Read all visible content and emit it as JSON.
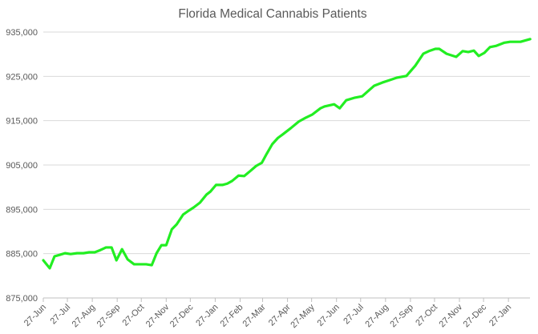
{
  "chart_data": {
    "type": "line",
    "title": "Florida Medical Cannabis Patients",
    "xlabel": "",
    "ylabel": "",
    "ylim": [
      875000,
      935000
    ],
    "yticks": [
      "875,000",
      "885,000",
      "895,000",
      "905,000",
      "915,000",
      "925,000",
      "935,000"
    ],
    "ytick_values": [
      875000,
      885000,
      895000,
      905000,
      915000,
      925000,
      935000
    ],
    "xtick_labels": [
      "27-Jun",
      "27-Jul",
      "27-Aug",
      "27-Sep",
      "27-Oct",
      "27-Nov",
      "27-Dec",
      "27-Jan",
      "27-Feb",
      "27-Mar",
      "27-Apr",
      "27-May",
      "27-Jun",
      "27-Jul",
      "27-Aug",
      "27-Sep",
      "27-Oct",
      "27-Nov",
      "27-Dec",
      "27-Jan"
    ],
    "xtick_dates": [
      "2022-06-27",
      "2022-07-27",
      "2022-08-27",
      "2022-09-27",
      "2022-10-27",
      "2022-11-27",
      "2022-12-27",
      "2023-01-27",
      "2023-02-27",
      "2023-03-27",
      "2023-04-27",
      "2023-05-27",
      "2023-06-27",
      "2023-07-27",
      "2023-08-27",
      "2023-09-27",
      "2023-10-27",
      "2023-11-27",
      "2023-12-27",
      "2024-01-27"
    ],
    "grid": true,
    "legend": "none",
    "line_color": "#22ee22",
    "series": [
      {
        "x": [
          "2022-06-27",
          "2022-07-05",
          "2022-07-11",
          "2022-07-17",
          "2022-07-24",
          "2022-07-31",
          "2022-08-08",
          "2022-08-16",
          "2022-08-23",
          "2022-08-30",
          "2022-09-06",
          "2022-09-13",
          "2022-09-20",
          "2022-09-26",
          "2022-10-03",
          "2022-10-10",
          "2022-10-18",
          "2022-10-26",
          "2022-11-02",
          "2022-11-09",
          "2022-11-15",
          "2022-11-21",
          "2022-11-27",
          "2022-12-04",
          "2022-12-10",
          "2022-12-18",
          "2022-12-25",
          "2022-12-31",
          "2023-01-08",
          "2023-01-16",
          "2023-01-21",
          "2023-01-28",
          "2023-02-05",
          "2023-02-11",
          "2023-02-17",
          "2023-02-25",
          "2023-03-04",
          "2023-03-12",
          "2023-03-19",
          "2023-03-26",
          "2023-04-01",
          "2023-04-08",
          "2023-04-15",
          "2023-04-21",
          "2023-05-01",
          "2023-05-11",
          "2023-05-20",
          "2023-05-28",
          "2023-06-07",
          "2023-06-12",
          "2023-06-24",
          "2023-07-01",
          "2023-07-09",
          "2023-07-20",
          "2023-07-29",
          "2023-08-06",
          "2023-08-13",
          "2023-08-23",
          "2023-09-02",
          "2023-09-10",
          "2023-09-22",
          "2023-10-03",
          "2023-10-13",
          "2023-10-20",
          "2023-10-28",
          "2023-11-02",
          "2023-11-11",
          "2023-11-23",
          "2023-12-01",
          "2023-12-08",
          "2023-12-15",
          "2023-12-21",
          "2023-12-28",
          "2024-01-04",
          "2024-01-12",
          "2024-01-22",
          "2024-01-29",
          "2024-02-11",
          "2024-02-23"
        ],
        "y": [
          883500,
          881700,
          884400,
          884700,
          885100,
          884900,
          885100,
          885100,
          885300,
          885300,
          885800,
          886400,
          886400,
          883500,
          886000,
          883700,
          882600,
          882600,
          882600,
          882400,
          885100,
          886900,
          886900,
          890500,
          891600,
          893800,
          894700,
          895400,
          896500,
          898300,
          899000,
          900500,
          900500,
          900800,
          901400,
          902600,
          902500,
          903700,
          904800,
          905500,
          907500,
          909700,
          911100,
          911900,
          913300,
          914800,
          915700,
          916400,
          917800,
          918200,
          918700,
          917800,
          919600,
          920200,
          920500,
          921800,
          922900,
          923600,
          924200,
          924700,
          925100,
          927400,
          930100,
          930700,
          931200,
          931200,
          930100,
          929400,
          930700,
          930500,
          930800,
          929600,
          930300,
          931600,
          931900,
          932600,
          932800,
          932800,
          933400
        ]
      }
    ]
  }
}
